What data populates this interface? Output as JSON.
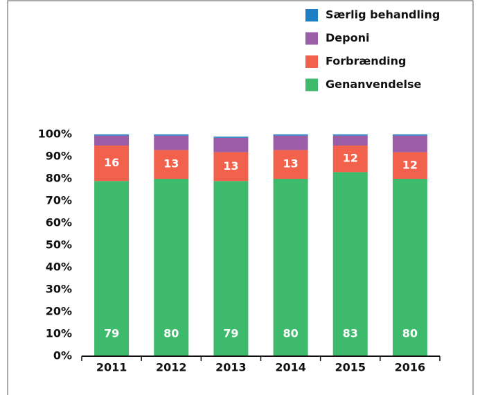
{
  "chart_data": {
    "type": "stacked_bar",
    "categories": [
      "2011",
      "2012",
      "2013",
      "2014",
      "2015",
      "2016"
    ],
    "series": [
      {
        "name": "Genanvendelse",
        "color": "#3dba6b",
        "labels": true,
        "values": [
          79,
          80,
          79,
          80,
          83,
          80
        ]
      },
      {
        "name": "Forbrænding",
        "color": "#f2614c",
        "labels": true,
        "values": [
          16,
          13,
          13,
          13,
          12,
          12
        ]
      },
      {
        "name": "Deponi",
        "color": "#9b5ca8",
        "labels": false,
        "values": [
          4.5,
          6.5,
          6.5,
          6.5,
          4.5,
          7.5
        ]
      },
      {
        "name": "Særlig behandling",
        "color": "#1f7fc4",
        "labels": false,
        "values": [
          0.5,
          0.5,
          0.5,
          0.5,
          0.5,
          0.5
        ]
      }
    ],
    "ylim": [
      0,
      100
    ],
    "yticks": [
      {
        "value": 0,
        "label": "0%"
      },
      {
        "value": 10,
        "label": "10%"
      },
      {
        "value": 20,
        "label": "20%"
      },
      {
        "value": 30,
        "label": "30%"
      },
      {
        "value": 40,
        "label": "40%"
      },
      {
        "value": 50,
        "label": "50%"
      },
      {
        "value": 60,
        "label": "60%"
      },
      {
        "value": 70,
        "label": "70%"
      },
      {
        "value": 80,
        "label": "80%"
      },
      {
        "value": 90,
        "label": "90%"
      },
      {
        "value": 100,
        "label": "100%"
      }
    ],
    "legend": "top-right"
  }
}
